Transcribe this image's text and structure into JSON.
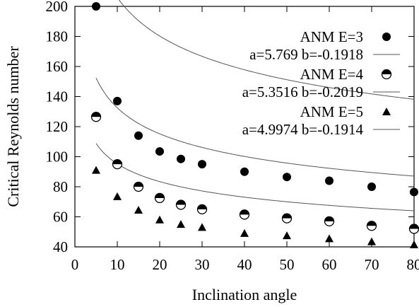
{
  "chart_data": {
    "type": "scatter",
    "title": "",
    "xlabel": "Inclination angle",
    "ylabel": "Critical Reynolds number",
    "xlim": [
      0,
      80
    ],
    "ylim": [
      40,
      200
    ],
    "xticks": [
      0,
      10,
      20,
      30,
      40,
      50,
      60,
      70,
      80
    ],
    "yticks": [
      40,
      60,
      80,
      100,
      120,
      140,
      160,
      180,
      200
    ],
    "grid": false,
    "legend_position": "top-right",
    "x": [
      5,
      10,
      15,
      20,
      25,
      30,
      40,
      50,
      60,
      70,
      80
    ],
    "series": [
      {
        "name": "ANM E=3",
        "marker": "filled-circle",
        "values": [
          200,
          137,
          114,
          103.5,
          98.5,
          95,
          90,
          86.5,
          84,
          80,
          76.5
        ],
        "fit_label": "a=5.769 b=-0.1918",
        "fit": {
          "a": 5.769,
          "b": -0.1918
        }
      },
      {
        "name": "ANM E=4",
        "marker": "half-filled-circle",
        "values": [
          126.5,
          95,
          80,
          72.5,
          68,
          65,
          61.5,
          59,
          57,
          54,
          52
        ],
        "fit_label": "a=5.3516 b=-0.2019",
        "fit": {
          "a": 5.3516,
          "b": -0.2019
        }
      },
      {
        "name": "ANM E=5",
        "marker": "filled-triangle",
        "values": [
          91,
          73.5,
          64.5,
          58,
          55,
          53,
          49,
          47.5,
          45.5,
          43.5,
          41.5
        ],
        "fit_label": "a=4.9974 b=-0.1914",
        "fit": {
          "a": 4.9974,
          "b": -0.1914
        }
      }
    ],
    "colors": {
      "marker": "#000000",
      "fit_line": "#555555",
      "axis": "#000000"
    }
  }
}
